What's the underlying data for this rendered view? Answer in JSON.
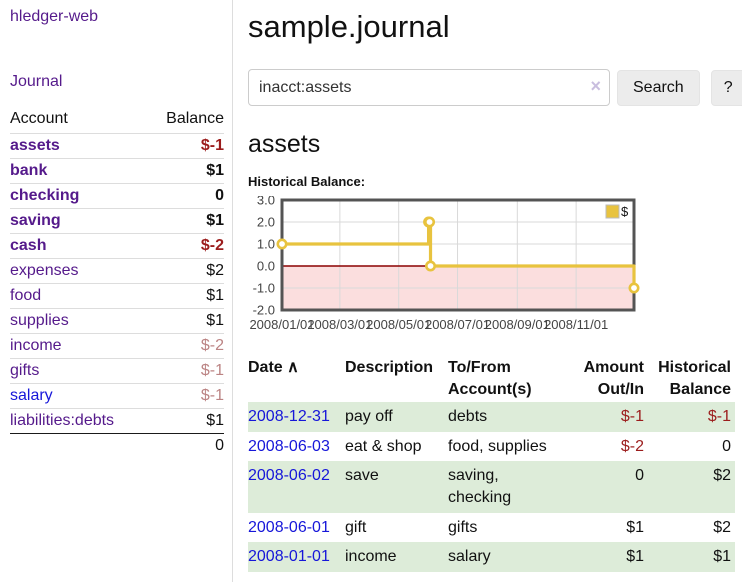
{
  "sidebar": {
    "brand": "hledger-web",
    "journal_link": "Journal",
    "accounts": {
      "col_account": "Account",
      "col_balance": "Balance",
      "rows": [
        {
          "name": "assets",
          "balance": "$-1",
          "depth": 1,
          "bold": true,
          "balance_style": "negative-strong"
        },
        {
          "name": "bank",
          "balance": "$1",
          "depth": 2,
          "bold": true,
          "balance_style": ""
        },
        {
          "name": "checking",
          "balance": "0",
          "depth": 3,
          "bold": true,
          "balance_style": ""
        },
        {
          "name": "saving",
          "balance": "$1",
          "depth": 3,
          "bold": true,
          "balance_style": ""
        },
        {
          "name": "cash",
          "balance": "$-2",
          "depth": 2,
          "bold": true,
          "balance_style": "negative-strong"
        },
        {
          "name": "expenses",
          "balance": "$2",
          "depth": 1,
          "bold": false,
          "balance_style": ""
        },
        {
          "name": "food",
          "balance": "$1",
          "depth": 2,
          "bold": false,
          "balance_style": ""
        },
        {
          "name": "supplies",
          "balance": "$1",
          "depth": 2,
          "bold": false,
          "balance_style": ""
        },
        {
          "name": "income",
          "balance": "$-2",
          "depth": 1,
          "bold": false,
          "balance_style": "negative-faded"
        },
        {
          "name": "gifts",
          "balance": "$-1",
          "depth": 2,
          "bold": false,
          "balance_style": "negative-faded"
        },
        {
          "name": "salary",
          "balance": "$-1",
          "depth": 2,
          "bold": false,
          "balance_style": "negative-faded",
          "unvisited": true
        },
        {
          "name": "liabilities:debts",
          "balance": "$1",
          "depth": 1,
          "bold": false,
          "balance_style": ""
        }
      ],
      "total": "0"
    }
  },
  "main": {
    "title": "sample.journal",
    "search": {
      "query": "inacct:assets",
      "clear_icon": "×",
      "button": "Search",
      "help": "?"
    },
    "account_heading": "assets",
    "chart_heading": "Historical Balance:"
  },
  "chart_data": {
    "type": "line",
    "step": true,
    "title": "Historical Balance:",
    "series": [
      {
        "name": "$",
        "color": "#e8c33f",
        "points": [
          {
            "x": "2008-01-01",
            "y": 1
          },
          {
            "x": "2008-06-01",
            "y": 2
          },
          {
            "x": "2008-06-02",
            "y": 2
          },
          {
            "x": "2008-06-03",
            "y": 0
          },
          {
            "x": "2008-12-31",
            "y": -1
          }
        ]
      }
    ],
    "xlim": [
      "2008-01-01",
      "2008-12-31"
    ],
    "ylim": [
      -2,
      3
    ],
    "y_ticks": [
      -2,
      -1,
      0,
      1,
      2,
      3
    ],
    "y_tick_labels": [
      "-2.0",
      "-1.0",
      "0.0",
      "1.0",
      "2.0",
      "3.0"
    ],
    "x_ticks": [
      "2008-01-01",
      "2008-03-01",
      "2008-05-01",
      "2008-07-01",
      "2008-09-01",
      "2008-11-01"
    ],
    "x_tick_labels": [
      "2008/01/01",
      "2008/03/01",
      "2008/05/01",
      "2008/07/01",
      "2008/09/01",
      "2008/11/01"
    ],
    "grid": true,
    "legend_position": "top-right",
    "legend_label": "$",
    "negative_region_fill": "#fbdede",
    "zero_line_color": "#8b0000"
  },
  "register": {
    "columns": {
      "date": "Date",
      "sort_icon": "∧",
      "description": "Description",
      "accounts": "To/From Account(s)",
      "amount": "Amount Out/In",
      "balance": "Historical Balance"
    },
    "rows": [
      {
        "date": "2008-12-31",
        "description": "pay off",
        "accounts": "debts",
        "amount": "$-1",
        "balance": "$-1",
        "amount_negative": true,
        "balance_negative": true
      },
      {
        "date": "2008-06-03",
        "description": "eat & shop",
        "accounts": "food, supplies",
        "amount": "$-2",
        "balance": "0",
        "amount_negative": true,
        "balance_negative": false
      },
      {
        "date": "2008-06-02",
        "description": "save",
        "accounts": "saving, checking",
        "amount": "0",
        "balance": "$2",
        "amount_negative": false,
        "balance_negative": false
      },
      {
        "date": "2008-06-01",
        "description": "gift",
        "accounts": "gifts",
        "amount": "$1",
        "balance": "$2",
        "amount_negative": false,
        "balance_negative": false
      },
      {
        "date": "2008-01-01",
        "description": "income",
        "accounts": "salary",
        "amount": "$1",
        "balance": "$1",
        "amount_negative": false,
        "balance_negative": false
      }
    ]
  },
  "colors": {
    "link_purple": "#551a8b",
    "link_blue": "#1616d9",
    "negative_strong": "#9b1c1c",
    "negative_faded": "#bb8383",
    "row_stripe_green": "#ddecd9",
    "series_gold": "#e8c33f",
    "zero_line": "#8b0000",
    "negative_region": "#fbdede"
  }
}
